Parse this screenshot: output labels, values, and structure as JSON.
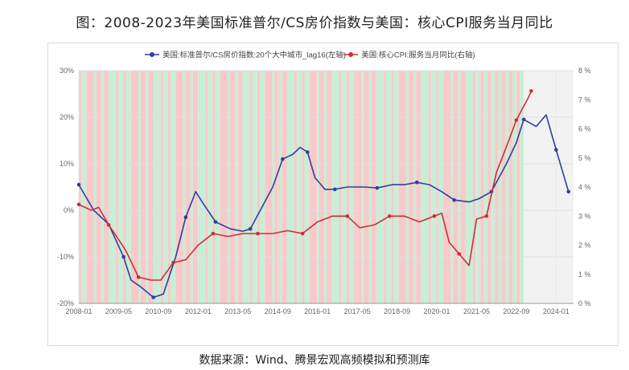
{
  "title": "图：2008-2023年美国标准普尔/CS房价指数与美国：核心CPI服务当月同比",
  "source": "数据来源：Wind、腾景宏观高频模拟和预测库",
  "chart_data": {
    "type": "line",
    "x_ticks": [
      "2008-01",
      "2009-05",
      "2010-09",
      "2012-01",
      "2013-05",
      "2014-09",
      "2016-01",
      "2017-05",
      "2018-09",
      "2020-01",
      "2021-05",
      "2022-09",
      "2024-01"
    ],
    "left_axis": {
      "ticks": [
        "30%",
        "20%",
        "10%",
        "0%",
        "-10%",
        "-20%"
      ],
      "ylim": [
        -20,
        30
      ]
    },
    "right_axis": {
      "ticks": [
        "8 %",
        "7 %",
        "6 %",
        "5 %",
        "4 %",
        "3 %",
        "2 %",
        "1 %",
        "0 %"
      ],
      "ylim": [
        0,
        8
      ]
    },
    "grid": true,
    "legend_position": "top",
    "background_bands": "alternating red and green shading marking periods",
    "series": [
      {
        "name": "美国:标准普尔/CS房价指数:20个大中城市_lag16(左轴)",
        "color": "#2f3f9e",
        "axis": "left",
        "points": [
          [
            "2008-01",
            5.5
          ],
          [
            "2008-07",
            0
          ],
          [
            "2009-01",
            -3
          ],
          [
            "2009-07",
            -10
          ],
          [
            "2009-10",
            -15
          ],
          [
            "2010-02",
            -16.5
          ],
          [
            "2010-07",
            -18.7
          ],
          [
            "2010-11",
            -18
          ],
          [
            "2011-04",
            -10
          ],
          [
            "2011-08",
            -1.5
          ],
          [
            "2011-12",
            4
          ],
          [
            "2012-03",
            1.5
          ],
          [
            "2012-08",
            -2.5
          ],
          [
            "2013-02",
            -4
          ],
          [
            "2013-07",
            -4.5
          ],
          [
            "2013-10",
            -4
          ],
          [
            "2014-02",
            0
          ],
          [
            "2014-07",
            5
          ],
          [
            "2014-11",
            11
          ],
          [
            "2015-03",
            12
          ],
          [
            "2015-06",
            13.5
          ],
          [
            "2015-09",
            12.5
          ],
          [
            "2015-12",
            7
          ],
          [
            "2016-04",
            4.5
          ],
          [
            "2016-08",
            4.5
          ],
          [
            "2017-01",
            5
          ],
          [
            "2017-08",
            5
          ],
          [
            "2018-01",
            4.8
          ],
          [
            "2018-07",
            5.5
          ],
          [
            "2018-12",
            5.5
          ],
          [
            "2019-05",
            6
          ],
          [
            "2019-10",
            5.5
          ],
          [
            "2020-03",
            4
          ],
          [
            "2020-08",
            2.2
          ],
          [
            "2021-02",
            1.8
          ],
          [
            "2021-06",
            2.5
          ],
          [
            "2021-11",
            4
          ],
          [
            "2022-05",
            10
          ],
          [
            "2022-09",
            14.5
          ],
          [
            "2022-12",
            19.5
          ],
          [
            "2023-05",
            18
          ],
          [
            "2023-09",
            20.5
          ],
          [
            "2024-01",
            13
          ],
          [
            "2024-06",
            4
          ]
        ]
      },
      {
        "name": "美国:核心CPI:服务当月同比(右轴)",
        "color": "#c8303a",
        "axis": "right",
        "points": [
          [
            "2008-01",
            3.4
          ],
          [
            "2008-06",
            3.2
          ],
          [
            "2008-09",
            3.3
          ],
          [
            "2009-01",
            2.7
          ],
          [
            "2009-05",
            2.2
          ],
          [
            "2009-08",
            1.8
          ],
          [
            "2010-01",
            0.9
          ],
          [
            "2010-06",
            0.8
          ],
          [
            "2010-10",
            0.8
          ],
          [
            "2011-03",
            1.4
          ],
          [
            "2011-08",
            1.5
          ],
          [
            "2012-01",
            2.0
          ],
          [
            "2012-07",
            2.4
          ],
          [
            "2013-01",
            2.3
          ],
          [
            "2013-07",
            2.4
          ],
          [
            "2014-01",
            2.4
          ],
          [
            "2014-07",
            2.4
          ],
          [
            "2015-01",
            2.5
          ],
          [
            "2015-07",
            2.4
          ],
          [
            "2016-01",
            2.8
          ],
          [
            "2016-07",
            3.0
          ],
          [
            "2017-01",
            3.0
          ],
          [
            "2017-06",
            2.6
          ],
          [
            "2017-12",
            2.7
          ],
          [
            "2018-06",
            3.0
          ],
          [
            "2018-12",
            3.0
          ],
          [
            "2019-06",
            2.8
          ],
          [
            "2019-12",
            3.0
          ],
          [
            "2020-03",
            3.1
          ],
          [
            "2020-06",
            2.1
          ],
          [
            "2020-10",
            1.7
          ],
          [
            "2021-02",
            1.3
          ],
          [
            "2021-05",
            2.9
          ],
          [
            "2021-09",
            3.0
          ],
          [
            "2022-01",
            4.5
          ],
          [
            "2022-06",
            5.6
          ],
          [
            "2022-09",
            6.3
          ],
          [
            "2023-02",
            7.1
          ],
          [
            "2023-03",
            7.3
          ]
        ]
      }
    ]
  }
}
